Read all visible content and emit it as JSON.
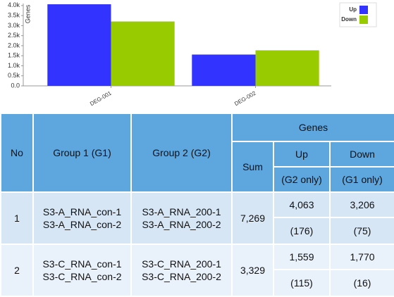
{
  "chart_data": {
    "type": "bar",
    "y_label": "Genes",
    "categories": [
      "DEG-001",
      "DEG-002"
    ],
    "series": [
      {
        "name": "Up",
        "color": "#3333ff",
        "values": [
          4063,
          1559
        ]
      },
      {
        "name": "Down",
        "color": "#99cc00",
        "values": [
          3206,
          1770
        ]
      }
    ],
    "ylim": [
      0,
      4100
    ],
    "yticks": [
      {
        "value": 0,
        "label": "0.0"
      },
      {
        "value": 500,
        "label": "0.5k"
      },
      {
        "value": 1000,
        "label": "1.0k"
      },
      {
        "value": 1500,
        "label": "1.5k"
      },
      {
        "value": 2000,
        "label": "2.0k"
      },
      {
        "value": 2500,
        "label": "2.5k"
      },
      {
        "value": 3000,
        "label": "3.0k"
      },
      {
        "value": 3500,
        "label": "3.5k"
      },
      {
        "value": 4000,
        "label": "4.0k"
      }
    ],
    "legend": "top-right"
  },
  "table": {
    "header": {
      "no": "No",
      "group1": "Group 1 (G1)",
      "group2": "Group 2 (G2)",
      "genes": "Genes",
      "sum": "Sum",
      "up": "Up",
      "down": "Down",
      "up_note": "(G2 only)",
      "down_note": "(G1 only)"
    },
    "rows": [
      {
        "no": "1",
        "group1": [
          "S3-A_RNA_con-1",
          "S3-A_RNA_con-2"
        ],
        "group2": [
          "S3-A_RNA_200-1",
          "S3-A_RNA_200-2"
        ],
        "sum": "7,269",
        "up": "4,063",
        "down": "3,206",
        "up_only": "(176)",
        "down_only": "(75)"
      },
      {
        "no": "2",
        "group1": [
          "S3-C_RNA_con-1",
          "S3-C_RNA_con-2"
        ],
        "group2": [
          "S3-C_RNA_200-1",
          "S3-C_RNA_200-2"
        ],
        "sum": "3,329",
        "up": "1,559",
        "down": "1,770",
        "up_only": "(115)",
        "down_only": "(16)"
      }
    ]
  }
}
